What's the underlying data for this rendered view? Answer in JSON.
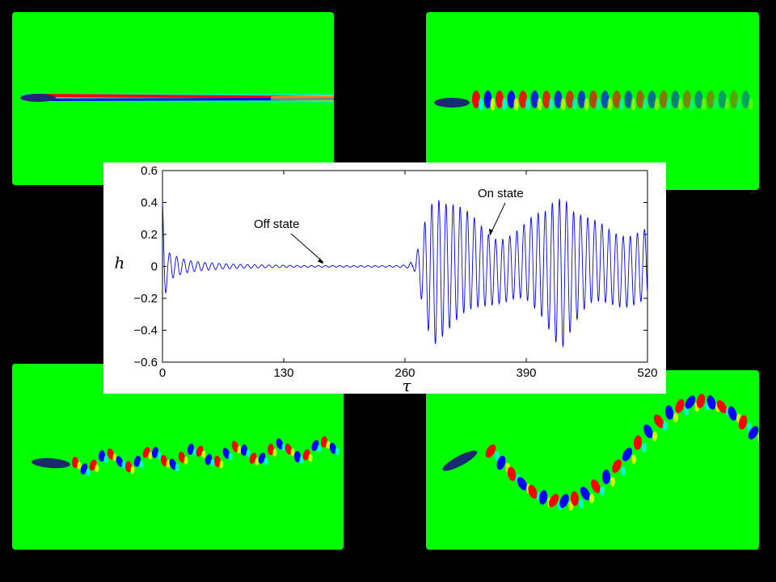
{
  "colors": {
    "background": "#000000",
    "field": "#00ff00",
    "vortex_positive": "#ff0000",
    "vortex_negative": "#0000ff",
    "vortex_weak_pos": "#ffff00",
    "vortex_weak_neg": "#00ffff",
    "signal": "#0000ff"
  },
  "panels": [
    {
      "name": "wake-steady",
      "description_icon": "flow-field-image"
    },
    {
      "name": "wake-periodic",
      "description_icon": "flow-field-image"
    },
    {
      "name": "wake-irregular",
      "description_icon": "flow-field-image"
    },
    {
      "name": "wake-large-amplitude",
      "description_icon": "flow-field-image"
    }
  ],
  "chart_data": {
    "type": "line",
    "xlabel": "τ",
    "ylabel": "h",
    "xlim": [
      0,
      520
    ],
    "ylim": [
      -0.6,
      0.6
    ],
    "xticks": [
      0,
      130,
      260,
      390,
      520
    ],
    "yticks": [
      -0.6,
      -0.4,
      -0.2,
      0,
      0.2,
      0.4,
      0.6
    ],
    "xtick_labels": [
      "0",
      "130",
      "260",
      "390",
      "520"
    ],
    "ytick_labels": [
      "−0.6",
      "−0.4",
      "−0.2",
      "0",
      "0.2",
      "0.4",
      "0.6"
    ],
    "grid": false,
    "series": [
      {
        "color": "#0000ff",
        "x": [
          0,
          1,
          2,
          3,
          4,
          6,
          8,
          10,
          12,
          14,
          16,
          18,
          20,
          25,
          30,
          40,
          60,
          90,
          130,
          150,
          200,
          250,
          262,
          266,
          270,
          274,
          278,
          282,
          286,
          290,
          294,
          300,
          320,
          340,
          350,
          360,
          370,
          380,
          395,
          410,
          420,
          430,
          440,
          460,
          480,
          500,
          520
        ],
        "y": [
          0.4,
          0.3,
          -0.22,
          0.1,
          -0.05,
          0.08,
          -0.06,
          0.06,
          -0.05,
          0.05,
          -0.04,
          0.04,
          -0.03,
          0.025,
          -0.02,
          0.012,
          0.008,
          0.004,
          0.002,
          0.005,
          0.0,
          -0.005,
          -0.02,
          0.02,
          -0.04,
          0.06,
          -0.1,
          0.2,
          -0.3,
          0.38,
          -0.45,
          0.36,
          -0.36,
          0.25,
          -0.22,
          0.2,
          -0.2,
          0.22,
          -0.3,
          0.32,
          -0.5,
          0.36,
          -0.4,
          0.24,
          -0.24,
          0.22,
          -0.22
        ],
        "envelope": {
          "x": [
            0,
            2,
            6,
            12,
            20,
            30,
            45,
            70,
            100,
            150,
            200,
            250,
            262,
            270,
            276,
            282,
            288,
            294,
            300,
            310,
            320,
            330,
            340,
            350,
            360,
            370,
            380,
            390,
            400,
            410,
            420,
            430,
            440,
            450,
            460,
            480,
            500,
            520
          ],
          "amplitude": [
            0.4,
            0.22,
            0.09,
            0.07,
            0.05,
            0.035,
            0.025,
            0.015,
            0.01,
            0.006,
            0.005,
            0.005,
            0.01,
            0.04,
            0.15,
            0.32,
            0.42,
            0.46,
            0.42,
            0.38,
            0.34,
            0.3,
            0.26,
            0.22,
            0.2,
            0.2,
            0.21,
            0.24,
            0.3,
            0.34,
            0.44,
            0.47,
            0.36,
            0.3,
            0.26,
            0.23,
            0.22,
            0.22
          ]
        }
      }
    ],
    "annotations": [
      {
        "text": "Off state",
        "x": 150,
        "y": 0.0
      },
      {
        "text": "On state",
        "x": 345,
        "y": 0.18
      }
    ]
  }
}
